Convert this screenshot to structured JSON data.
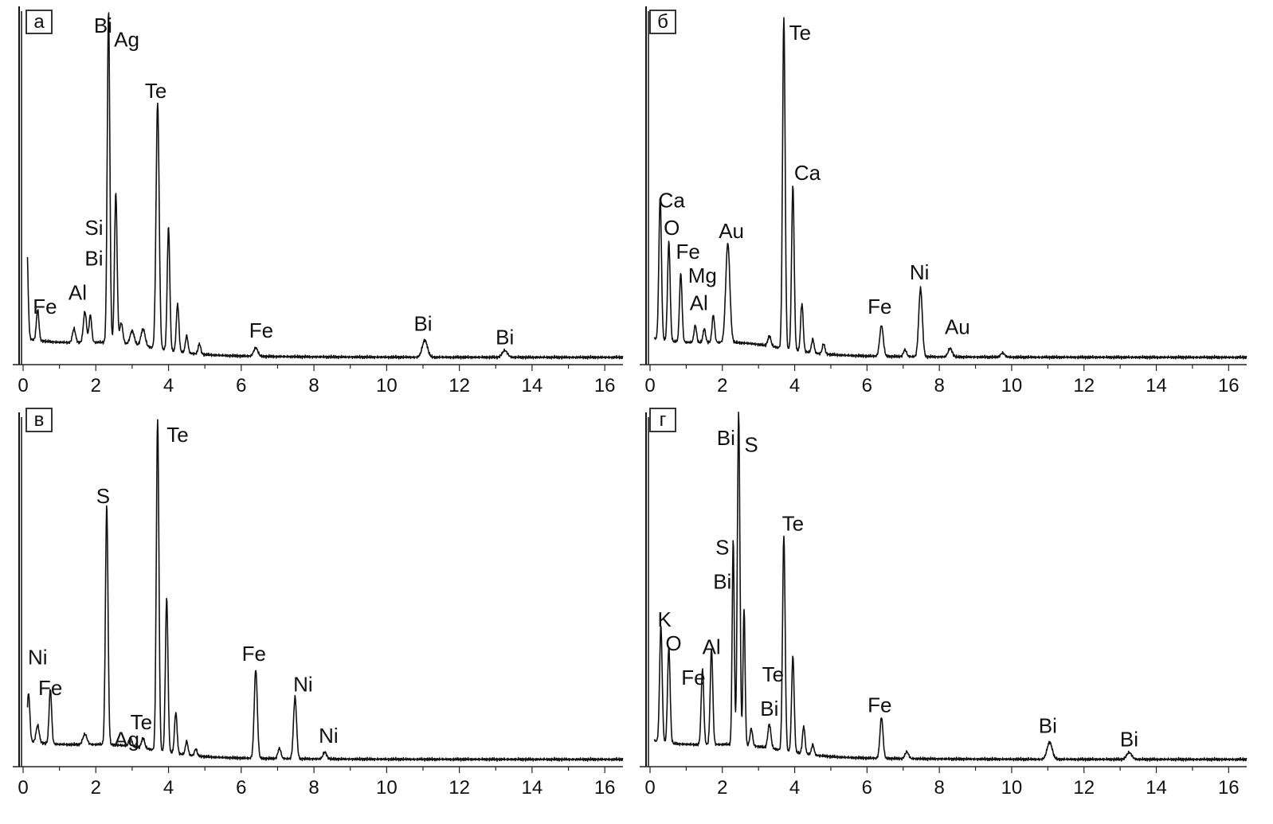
{
  "figure": {
    "colors": {
      "trace": "#111111",
      "axis": "#222222",
      "background": "#ffffff"
    }
  },
  "chart_data": [
    {
      "panel": "а",
      "type": "line",
      "xlim": [
        0,
        16.5
      ],
      "ylim": [
        0,
        100
      ],
      "x_ticks": [
        0,
        2,
        4,
        6,
        8,
        10,
        12,
        14,
        16
      ],
      "x_tick_labels": [
        "0",
        "2",
        "4",
        "6",
        "8",
        "10",
        "12",
        "14",
        "16"
      ],
      "grid": false,
      "peaks": [
        {
          "x": 0.1,
          "y": 28,
          "w": 0.05
        },
        {
          "x": 0.4,
          "y": 9,
          "w": 0.05
        },
        {
          "x": 1.4,
          "y": 4,
          "w": 0.06
        },
        {
          "x": 1.7,
          "y": 9,
          "w": 0.06
        },
        {
          "x": 1.85,
          "y": 8,
          "w": 0.05
        },
        {
          "x": 2.35,
          "y": 97,
          "w": 0.05
        },
        {
          "x": 2.55,
          "y": 44,
          "w": 0.05
        },
        {
          "x": 2.7,
          "y": 6,
          "w": 0.06
        },
        {
          "x": 3.0,
          "y": 4,
          "w": 0.08
        },
        {
          "x": 3.3,
          "y": 5,
          "w": 0.08
        },
        {
          "x": 3.7,
          "y": 72,
          "w": 0.06
        },
        {
          "x": 4.0,
          "y": 36,
          "w": 0.05
        },
        {
          "x": 4.25,
          "y": 14,
          "w": 0.05
        },
        {
          "x": 4.5,
          "y": 5,
          "w": 0.05
        },
        {
          "x": 4.85,
          "y": 3,
          "w": 0.05
        },
        {
          "x": 6.4,
          "y": 2.5,
          "w": 0.08
        },
        {
          "x": 11.05,
          "y": 5,
          "w": 0.1
        },
        {
          "x": 13.25,
          "y": 2,
          "w": 0.1
        }
      ],
      "labels": [
        {
          "text": "Bi",
          "x": 2.2,
          "y": 96
        },
        {
          "text": "Ag",
          "x": 2.85,
          "y": 92
        },
        {
          "text": "Te",
          "x": 3.65,
          "y": 77
        },
        {
          "text": "Si",
          "x": 1.95,
          "y": 37
        },
        {
          "text": "Bi",
          "x": 1.95,
          "y": 28
        },
        {
          "text": "Al",
          "x": 1.5,
          "y": 18
        },
        {
          "text": "Fe",
          "x": 0.6,
          "y": 14
        },
        {
          "text": "Fe",
          "x": 6.55,
          "y": 7
        },
        {
          "text": "Bi",
          "x": 11.0,
          "y": 9
        },
        {
          "text": "Bi",
          "x": 13.25,
          "y": 5
        }
      ]
    },
    {
      "panel": "б",
      "type": "line",
      "xlim": [
        0,
        16.5
      ],
      "ylim": [
        0,
        100
      ],
      "x_ticks": [
        0,
        2,
        4,
        6,
        8,
        10,
        12,
        14,
        16
      ],
      "x_tick_labels": [
        "0",
        "2",
        "4",
        "6",
        "8",
        "10",
        "12",
        "14",
        "16"
      ],
      "grid": false,
      "peaks": [
        {
          "x": 0.28,
          "y": 42,
          "w": 0.05
        },
        {
          "x": 0.52,
          "y": 29,
          "w": 0.05
        },
        {
          "x": 0.85,
          "y": 20,
          "w": 0.05
        },
        {
          "x": 1.25,
          "y": 5,
          "w": 0.05
        },
        {
          "x": 1.5,
          "y": 4,
          "w": 0.05
        },
        {
          "x": 1.75,
          "y": 8,
          "w": 0.05
        },
        {
          "x": 2.15,
          "y": 29,
          "w": 0.08
        },
        {
          "x": 3.3,
          "y": 3,
          "w": 0.06
        },
        {
          "x": 3.7,
          "y": 97,
          "w": 0.05
        },
        {
          "x": 3.95,
          "y": 48,
          "w": 0.05
        },
        {
          "x": 4.2,
          "y": 14,
          "w": 0.05
        },
        {
          "x": 4.5,
          "y": 4,
          "w": 0.05
        },
        {
          "x": 4.8,
          "y": 3,
          "w": 0.05
        },
        {
          "x": 6.4,
          "y": 9,
          "w": 0.07
        },
        {
          "x": 7.05,
          "y": 2,
          "w": 0.06
        },
        {
          "x": 7.48,
          "y": 20,
          "w": 0.07
        },
        {
          "x": 8.3,
          "y": 2.5,
          "w": 0.08
        },
        {
          "x": 9.75,
          "y": 1.2,
          "w": 0.08
        }
      ],
      "labels": [
        {
          "text": "Te",
          "x": 4.15,
          "y": 94
        },
        {
          "text": "Ca",
          "x": 4.35,
          "y": 53
        },
        {
          "text": "Ca",
          "x": 0.6,
          "y": 45
        },
        {
          "text": "O",
          "x": 0.6,
          "y": 37
        },
        {
          "text": "Fe",
          "x": 1.05,
          "y": 30
        },
        {
          "text": "Mg",
          "x": 1.45,
          "y": 23
        },
        {
          "text": "Al",
          "x": 1.35,
          "y": 15
        },
        {
          "text": "Au",
          "x": 2.25,
          "y": 36
        },
        {
          "text": "Fe",
          "x": 6.35,
          "y": 14
        },
        {
          "text": "Ni",
          "x": 7.45,
          "y": 24
        },
        {
          "text": "Au",
          "x": 8.5,
          "y": 8
        }
      ]
    },
    {
      "panel": "в",
      "type": "line",
      "xlim": [
        0,
        16.5
      ],
      "ylim": [
        0,
        100
      ],
      "x_ticks": [
        0,
        2,
        4,
        6,
        8,
        10,
        12,
        14,
        16
      ],
      "x_tick_labels": [
        "0",
        "2",
        "4",
        "6",
        "8",
        "10",
        "12",
        "14",
        "16"
      ],
      "grid": false,
      "peaks": [
        {
          "x": 0.15,
          "y": 14,
          "w": 0.05
        },
        {
          "x": 0.4,
          "y": 5,
          "w": 0.06
        },
        {
          "x": 0.75,
          "y": 16,
          "w": 0.05
        },
        {
          "x": 1.7,
          "y": 3,
          "w": 0.08
        },
        {
          "x": 2.3,
          "y": 70,
          "w": 0.05
        },
        {
          "x": 2.95,
          "y": 2.5,
          "w": 0.06
        },
        {
          "x": 3.3,
          "y": 3,
          "w": 0.06
        },
        {
          "x": 3.7,
          "y": 97,
          "w": 0.05
        },
        {
          "x": 3.95,
          "y": 45,
          "w": 0.05
        },
        {
          "x": 4.2,
          "y": 12,
          "w": 0.05
        },
        {
          "x": 4.5,
          "y": 4,
          "w": 0.05
        },
        {
          "x": 4.75,
          "y": 2,
          "w": 0.05
        },
        {
          "x": 6.4,
          "y": 26,
          "w": 0.06
        },
        {
          "x": 7.05,
          "y": 3,
          "w": 0.06
        },
        {
          "x": 7.48,
          "y": 18,
          "w": 0.06
        },
        {
          "x": 8.3,
          "y": 2,
          "w": 0.07
        }
      ],
      "labels": [
        {
          "text": "Te",
          "x": 4.25,
          "y": 94
        },
        {
          "text": "S",
          "x": 2.2,
          "y": 76
        },
        {
          "text": "Ni",
          "x": 0.4,
          "y": 29
        },
        {
          "text": "Fe",
          "x": 0.75,
          "y": 20
        },
        {
          "text": "Te",
          "x": 3.25,
          "y": 10
        },
        {
          "text": "Ag",
          "x": 2.85,
          "y": 5
        },
        {
          "text": "Fe",
          "x": 6.35,
          "y": 30
        },
        {
          "text": "Ni",
          "x": 7.7,
          "y": 21
        },
        {
          "text": "Ni",
          "x": 8.4,
          "y": 6
        }
      ]
    },
    {
      "panel": "г",
      "type": "line",
      "xlim": [
        0,
        16.5
      ],
      "ylim": [
        0,
        100
      ],
      "x_ticks": [
        0,
        2,
        4,
        6,
        8,
        10,
        12,
        14,
        16
      ],
      "x_tick_labels": [
        "0",
        "2",
        "4",
        "6",
        "8",
        "10",
        "12",
        "14",
        "16"
      ],
      "grid": false,
      "peaks": [
        {
          "x": 0.3,
          "y": 34,
          "w": 0.05
        },
        {
          "x": 0.52,
          "y": 28,
          "w": 0.05
        },
        {
          "x": 1.45,
          "y": 22,
          "w": 0.05
        },
        {
          "x": 1.7,
          "y": 28,
          "w": 0.05
        },
        {
          "x": 2.3,
          "y": 60,
          "w": 0.04
        },
        {
          "x": 2.45,
          "y": 97,
          "w": 0.05
        },
        {
          "x": 2.6,
          "y": 40,
          "w": 0.04
        },
        {
          "x": 2.8,
          "y": 5,
          "w": 0.05
        },
        {
          "x": 3.3,
          "y": 7,
          "w": 0.06
        },
        {
          "x": 3.7,
          "y": 63,
          "w": 0.05
        },
        {
          "x": 3.95,
          "y": 28,
          "w": 0.05
        },
        {
          "x": 4.25,
          "y": 8,
          "w": 0.05
        },
        {
          "x": 4.5,
          "y": 3,
          "w": 0.05
        },
        {
          "x": 6.4,
          "y": 12,
          "w": 0.06
        },
        {
          "x": 7.1,
          "y": 2,
          "w": 0.07
        },
        {
          "x": 11.05,
          "y": 5,
          "w": 0.1
        },
        {
          "x": 13.25,
          "y": 2,
          "w": 0.1
        }
      ],
      "labels": [
        {
          "text": "Bi",
          "x": 2.1,
          "y": 93
        },
        {
          "text": "S",
          "x": 2.8,
          "y": 91
        },
        {
          "text": "Te",
          "x": 3.95,
          "y": 68
        },
        {
          "text": "S",
          "x": 2.0,
          "y": 61
        },
        {
          "text": "Bi",
          "x": 2.0,
          "y": 51
        },
        {
          "text": "K",
          "x": 0.4,
          "y": 40
        },
        {
          "text": "O",
          "x": 0.65,
          "y": 33
        },
        {
          "text": "Al",
          "x": 1.7,
          "y": 32
        },
        {
          "text": "Fe",
          "x": 1.2,
          "y": 23
        },
        {
          "text": "Te",
          "x": 3.4,
          "y": 24
        },
        {
          "text": "Bi",
          "x": 3.3,
          "y": 14
        },
        {
          "text": "Fe",
          "x": 6.35,
          "y": 15
        },
        {
          "text": "Bi",
          "x": 11.0,
          "y": 9
        },
        {
          "text": "Bi",
          "x": 13.25,
          "y": 5
        }
      ]
    }
  ]
}
